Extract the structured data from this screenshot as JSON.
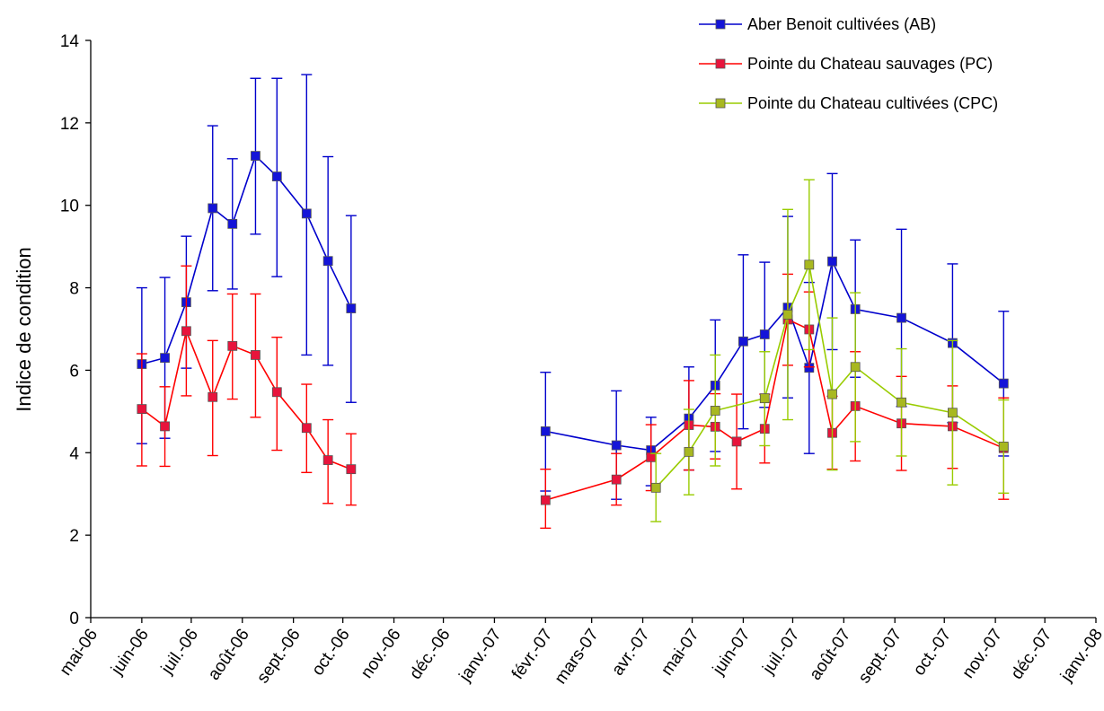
{
  "chart_data": {
    "type": "line",
    "title": "",
    "xlabel": "",
    "ylabel": "Indice de condition",
    "ylim": [
      0,
      14
    ],
    "yticks": [
      0,
      2,
      4,
      6,
      8,
      10,
      12,
      14
    ],
    "xlim": [
      "2006-05-01",
      "2008-01-01"
    ],
    "xticks": [
      "mai-06",
      "juin-06",
      "juil.-06",
      "août-06",
      "sept.-06",
      "oct.-06",
      "nov.-06",
      "déc.-06",
      "janv.-07",
      "févr.-07",
      "mars-07",
      "avr.-07",
      "mai-07",
      "juin-07",
      "juil.-07",
      "août-07",
      "sept.-07",
      "oct.-07",
      "nov.-07",
      "déc.-07",
      "janv.-08"
    ],
    "grid": false,
    "legend_position": "top-right",
    "series": [
      {
        "name": "Aber Benoit cultivées (AB)",
        "color": "#0000cc",
        "marker_fill": "#1414d8",
        "points": [
          {
            "x": "2006-06-01",
            "y": 6.15,
            "lo": 4.22,
            "hi": 8.0
          },
          {
            "x": "2006-06-15",
            "y": 6.3,
            "lo": 4.35,
            "hi": 8.25
          },
          {
            "x": "2006-06-28",
            "y": 7.65,
            "lo": 6.05,
            "hi": 9.25
          },
          {
            "x": "2006-07-14",
            "y": 9.93,
            "lo": 7.93,
            "hi": 11.93
          },
          {
            "x": "2006-07-26",
            "y": 9.55,
            "lo": 7.97,
            "hi": 11.13
          },
          {
            "x": "2006-08-09",
            "y": 11.2,
            "lo": 9.3,
            "hi": 13.08
          },
          {
            "x": "2006-08-22",
            "y": 10.7,
            "lo": 8.27,
            "hi": 13.08
          },
          {
            "x": "2006-09-09",
            "y": 9.8,
            "lo": 6.37,
            "hi": 13.17
          },
          {
            "x": "2006-09-22",
            "y": 8.65,
            "lo": 6.12,
            "hi": 11.18
          },
          {
            "x": "2006-10-06",
            "y": 7.5,
            "lo": 5.22,
            "hi": 9.75
          },
          {
            "x": "2007-02-01",
            "y": 4.52,
            "lo": 3.07,
            "hi": 5.95
          },
          {
            "x": "2007-03-16",
            "y": 4.18,
            "lo": 2.87,
            "hi": 5.5
          },
          {
            "x": "2007-04-06",
            "y": 4.06,
            "lo": 3.2,
            "hi": 4.86
          },
          {
            "x": "2007-04-29",
            "y": 4.83,
            "lo": 3.58,
            "hi": 6.08
          },
          {
            "x": "2007-05-15",
            "y": 5.63,
            "lo": 4.03,
            "hi": 7.22
          },
          {
            "x": "2007-06-01",
            "y": 6.7,
            "lo": 4.58,
            "hi": 8.8
          },
          {
            "x": "2007-06-14",
            "y": 6.87,
            "lo": 5.1,
            "hi": 8.62
          },
          {
            "x": "2007-06-28",
            "y": 7.52,
            "lo": 5.33,
            "hi": 9.73
          },
          {
            "x": "2007-07-11",
            "y": 6.06,
            "lo": 3.98,
            "hi": 8.13
          },
          {
            "x": "2007-07-25",
            "y": 8.64,
            "lo": 6.5,
            "hi": 10.77
          },
          {
            "x": "2007-08-08",
            "y": 7.48,
            "lo": 5.83,
            "hi": 9.16
          },
          {
            "x": "2007-09-05",
            "y": 7.27,
            "lo": 5.12,
            "hi": 9.42
          },
          {
            "x": "2007-10-06",
            "y": 6.66,
            "lo": 4.73,
            "hi": 8.58
          },
          {
            "x": "2007-11-06",
            "y": 5.68,
            "lo": 3.92,
            "hi": 7.43
          }
        ]
      },
      {
        "name": "Pointe du Chateau sauvages (PC)",
        "color": "#ff0000",
        "marker_fill": "#e8143c",
        "points": [
          {
            "x": "2006-06-01",
            "y": 5.06,
            "lo": 3.68,
            "hi": 6.4
          },
          {
            "x": "2006-06-15",
            "y": 4.64,
            "lo": 3.67,
            "hi": 5.6
          },
          {
            "x": "2006-06-28",
            "y": 6.95,
            "lo": 5.38,
            "hi": 8.53
          },
          {
            "x": "2006-07-14",
            "y": 5.35,
            "lo": 3.93,
            "hi": 6.72
          },
          {
            "x": "2006-07-26",
            "y": 6.59,
            "lo": 5.3,
            "hi": 7.85
          },
          {
            "x": "2006-08-09",
            "y": 6.37,
            "lo": 4.86,
            "hi": 7.85
          },
          {
            "x": "2006-08-22",
            "y": 5.47,
            "lo": 4.06,
            "hi": 6.8
          },
          {
            "x": "2006-09-09",
            "y": 4.6,
            "lo": 3.52,
            "hi": 5.66
          },
          {
            "x": "2006-09-22",
            "y": 3.82,
            "lo": 2.77,
            "hi": 4.8
          },
          {
            "x": "2006-10-06",
            "y": 3.6,
            "lo": 2.73,
            "hi": 4.46
          },
          {
            "x": "2007-02-01",
            "y": 2.85,
            "lo": 2.17,
            "hi": 3.6
          },
          {
            "x": "2007-03-16",
            "y": 3.35,
            "lo": 2.73,
            "hi": 3.98
          },
          {
            "x": "2007-04-06",
            "y": 3.89,
            "lo": 3.08,
            "hi": 4.68
          },
          {
            "x": "2007-04-29",
            "y": 4.67,
            "lo": 3.58,
            "hi": 5.75
          },
          {
            "x": "2007-05-15",
            "y": 4.63,
            "lo": 3.85,
            "hi": 5.43
          },
          {
            "x": "2007-05-28",
            "y": 4.27,
            "lo": 3.12,
            "hi": 5.42
          },
          {
            "x": "2007-06-14",
            "y": 4.58,
            "lo": 3.75,
            "hi": 5.42
          },
          {
            "x": "2007-06-28",
            "y": 7.23,
            "lo": 6.12,
            "hi": 8.33
          },
          {
            "x": "2007-07-11",
            "y": 6.99,
            "lo": 6.08,
            "hi": 7.9
          },
          {
            "x": "2007-07-25",
            "y": 4.48,
            "lo": 3.6,
            "hi": 5.37
          },
          {
            "x": "2007-08-08",
            "y": 5.13,
            "lo": 3.8,
            "hi": 6.45
          },
          {
            "x": "2007-09-05",
            "y": 4.71,
            "lo": 3.57,
            "hi": 5.85
          },
          {
            "x": "2007-10-06",
            "y": 4.64,
            "lo": 3.62,
            "hi": 5.62
          },
          {
            "x": "2007-11-06",
            "y": 4.11,
            "lo": 2.87,
            "hi": 5.33
          }
        ]
      },
      {
        "name": "Pointe du Chateau cultivées (CPC)",
        "color": "#99cc00",
        "marker_fill": "#a8b820",
        "points": [
          {
            "x": "2007-04-09",
            "y": 3.15,
            "lo": 2.33,
            "hi": 3.98
          },
          {
            "x": "2007-04-29",
            "y": 4.02,
            "lo": 2.98,
            "hi": 5.05
          },
          {
            "x": "2007-05-15",
            "y": 5.02,
            "lo": 3.68,
            "hi": 6.37
          },
          {
            "x": "2007-06-14",
            "y": 5.32,
            "lo": 4.17,
            "hi": 6.45
          },
          {
            "x": "2007-06-28",
            "y": 7.35,
            "lo": 4.8,
            "hi": 9.9
          },
          {
            "x": "2007-07-11",
            "y": 8.56,
            "lo": 6.5,
            "hi": 10.62
          },
          {
            "x": "2007-07-25",
            "y": 5.42,
            "lo": 3.58,
            "hi": 7.27
          },
          {
            "x": "2007-08-08",
            "y": 6.08,
            "lo": 4.27,
            "hi": 7.88
          },
          {
            "x": "2007-09-05",
            "y": 5.22,
            "lo": 3.92,
            "hi": 6.52
          },
          {
            "x": "2007-10-06",
            "y": 4.97,
            "lo": 3.22,
            "hi": 6.72
          },
          {
            "x": "2007-11-06",
            "y": 4.15,
            "lo": 3.02,
            "hi": 5.28
          }
        ]
      }
    ]
  }
}
